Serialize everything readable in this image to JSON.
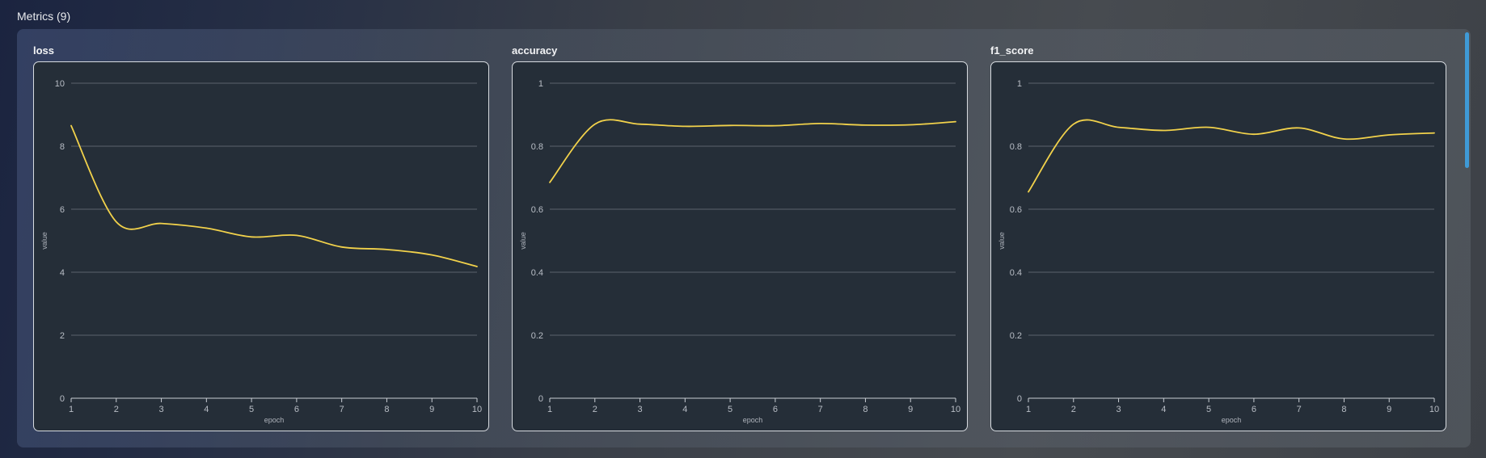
{
  "section": {
    "title": "Metrics (9)"
  },
  "colors": {
    "line": "#f2d24b",
    "grid": "#5b636c",
    "card_bg": "#252e38",
    "scrollbar": "#3f9ad6"
  },
  "charts": [
    {
      "title": "loss"
    },
    {
      "title": "accuracy"
    },
    {
      "title": "f1_score"
    }
  ],
  "chart_data": [
    {
      "type": "line",
      "title": "loss",
      "xlabel": "epoch",
      "ylabel": "value",
      "x": [
        1,
        2,
        3,
        4,
        5,
        6,
        7,
        8,
        9,
        10
      ],
      "xticks": [
        "1",
        "2",
        "3",
        "4",
        "5",
        "6",
        "7",
        "8",
        "9",
        "10"
      ],
      "yticks": [
        "0",
        "2",
        "4",
        "6",
        "8",
        "10"
      ],
      "ylim": [
        0,
        10
      ],
      "grid": true,
      "series": [
        {
          "values": [
            8.65,
            5.6,
            5.55,
            5.4,
            5.12,
            5.17,
            4.8,
            4.72,
            4.55,
            4.18
          ]
        }
      ]
    },
    {
      "type": "line",
      "title": "accuracy",
      "xlabel": "epoch",
      "ylabel": "value",
      "x": [
        1,
        2,
        3,
        4,
        5,
        6,
        7,
        8,
        9,
        10
      ],
      "xticks": [
        "1",
        "2",
        "3",
        "4",
        "5",
        "6",
        "7",
        "8",
        "9",
        "10"
      ],
      "yticks": [
        "0",
        "0.2",
        "0.4",
        "0.6",
        "0.8",
        "1"
      ],
      "ylim": [
        0,
        1
      ],
      "grid": true,
      "series": [
        {
          "values": [
            0.685,
            0.87,
            0.87,
            0.863,
            0.866,
            0.865,
            0.872,
            0.867,
            0.868,
            0.878
          ]
        }
      ]
    },
    {
      "type": "line",
      "title": "f1_score",
      "xlabel": "epoch",
      "ylabel": "value",
      "x": [
        1,
        2,
        3,
        4,
        5,
        6,
        7,
        8,
        9,
        10
      ],
      "xticks": [
        "1",
        "2",
        "3",
        "4",
        "5",
        "6",
        "7",
        "8",
        "9",
        "10"
      ],
      "yticks": [
        "0",
        "0.2",
        "0.4",
        "0.6",
        "0.8",
        "1"
      ],
      "ylim": [
        0,
        1
      ],
      "grid": true,
      "series": [
        {
          "values": [
            0.655,
            0.87,
            0.86,
            0.85,
            0.86,
            0.838,
            0.858,
            0.823,
            0.836,
            0.842
          ]
        }
      ]
    }
  ]
}
